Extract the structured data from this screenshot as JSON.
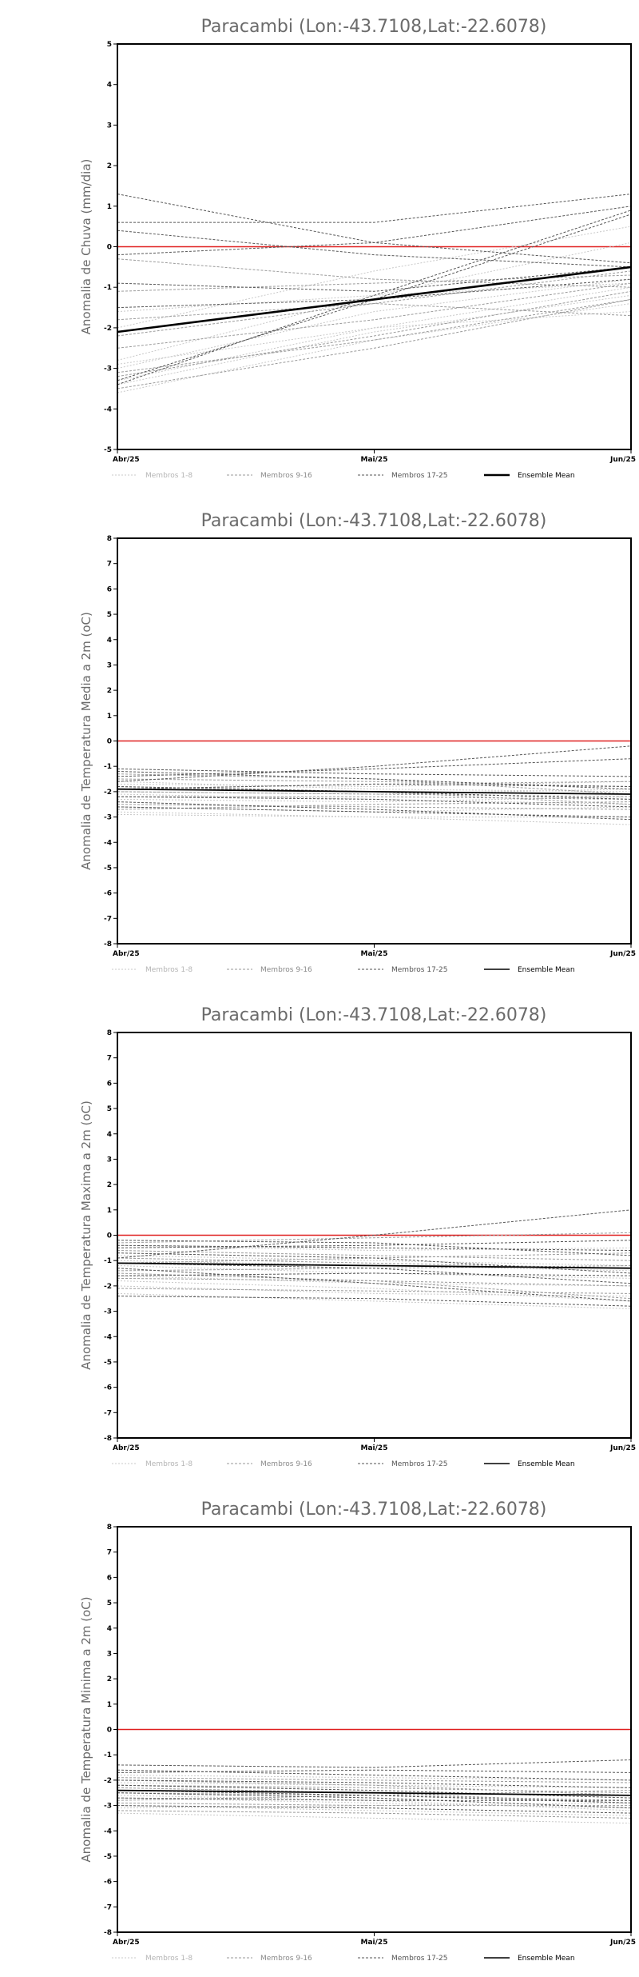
{
  "chart_data": [
    {
      "type": "line",
      "title": "Paracambi (Lon:-43.7108,Lat:-22.6078)",
      "ylabel": "Anomalia de Chuva (mm/dia)",
      "x": [
        "Abr/25",
        "Mai/25",
        "Jun/25"
      ],
      "ylim": [
        -5,
        5
      ],
      "yticks": [
        5,
        4,
        3,
        2,
        1,
        0,
        -1,
        -2,
        -3,
        -4,
        -5
      ],
      "reference_line": {
        "y": 0,
        "color": "#e02020"
      },
      "legend": [
        {
          "name": "Membros 1-8",
          "color": "#c8c8c8",
          "dash": "2,2"
        },
        {
          "name": "Membros 9-16",
          "color": "#9a9a9a",
          "dash": "3,2"
        },
        {
          "name": "Membros 17-25",
          "color": "#555555",
          "dash": "3,2"
        },
        {
          "name": "Ensemble Mean",
          "color": "#000000",
          "dash": ""
        }
      ],
      "series": [
        {
          "group": 0,
          "values": [
            -3.6,
            -2.3,
            -1.4
          ]
        },
        {
          "group": 0,
          "values": [
            -3.3,
            -2.0,
            -1.0
          ]
        },
        {
          "group": 0,
          "values": [
            -3.0,
            -1.6,
            -0.8
          ]
        },
        {
          "group": 0,
          "values": [
            -2.8,
            -1.2,
            0.1
          ]
        },
        {
          "group": 0,
          "values": [
            -2.0,
            -0.6,
            0.5
          ]
        },
        {
          "group": 0,
          "values": [
            -1.6,
            -1.2,
            -0.9
          ]
        },
        {
          "group": 0,
          "values": [
            -3.4,
            -2.1,
            -1.2
          ]
        },
        {
          "group": 0,
          "values": [
            -2.9,
            -2.0,
            -1.6
          ]
        },
        {
          "group": 1,
          "values": [
            -3.5,
            -2.5,
            -1.3
          ]
        },
        {
          "group": 1,
          "values": [
            -3.2,
            -2.2,
            -1.1
          ]
        },
        {
          "group": 1,
          "values": [
            -2.5,
            -1.8,
            -0.9
          ]
        },
        {
          "group": 1,
          "values": [
            -2.2,
            -1.4,
            -0.6
          ]
        },
        {
          "group": 1,
          "values": [
            -0.3,
            -0.8,
            -1.0
          ]
        },
        {
          "group": 1,
          "values": [
            -1.8,
            -1.4,
            -1.7
          ]
        },
        {
          "group": 1,
          "values": [
            -3.1,
            -2.3,
            -1.3
          ]
        },
        {
          "group": 1,
          "values": [
            -1.1,
            -0.9,
            -0.7
          ]
        },
        {
          "group": 2,
          "values": [
            1.3,
            0.1,
            -0.4
          ]
        },
        {
          "group": 2,
          "values": [
            -3.4,
            -1.2,
            0.9
          ]
        },
        {
          "group": 2,
          "values": [
            -3.3,
            -1.3,
            0.8
          ]
        },
        {
          "group": 2,
          "values": [
            0.6,
            0.6,
            1.3
          ]
        },
        {
          "group": 2,
          "values": [
            0.4,
            -0.2,
            -0.5
          ]
        },
        {
          "group": 2,
          "values": [
            -0.9,
            -1.1,
            -0.5
          ]
        },
        {
          "group": 2,
          "values": [
            -2.1,
            -1.3,
            -0.5
          ]
        },
        {
          "group": 2,
          "values": [
            -0.2,
            0.1,
            1.0
          ]
        },
        {
          "group": 2,
          "values": [
            -1.5,
            -1.3,
            -0.8
          ]
        },
        {
          "group": 3,
          "values": [
            -2.1,
            -1.3,
            -0.5
          ]
        }
      ]
    },
    {
      "type": "line",
      "title": "Paracambi (Lon:-43.7108,Lat:-22.6078)",
      "ylabel": "Anomalia de Temperatura Media a 2m (oC)",
      "x": [
        "Abr/25",
        "Mai/25",
        "Jun/25"
      ],
      "ylim": [
        -8,
        8
      ],
      "yticks": [
        8,
        7,
        6,
        5,
        4,
        3,
        2,
        1,
        0,
        -1,
        -2,
        -3,
        -4,
        -5,
        -6,
        -7,
        -8
      ],
      "reference_line": {
        "y": 0,
        "color": "#e02020"
      },
      "legend": [
        {
          "name": "Membros 1-8",
          "color": "#c8c8c8",
          "dash": "2,2"
        },
        {
          "name": "Membros 9-16",
          "color": "#9a9a9a",
          "dash": "3,2"
        },
        {
          "name": "Membros 17-25",
          "color": "#555555",
          "dash": "3,2"
        },
        {
          "name": "Ensemble Mean",
          "color": "#000000",
          "dash": ""
        }
      ],
      "series": [
        {
          "group": 0,
          "values": [
            -2.9,
            -3.0,
            -3.0
          ]
        },
        {
          "group": 0,
          "values": [
            -2.6,
            -2.8,
            -2.6
          ]
        },
        {
          "group": 0,
          "values": [
            -2.3,
            -2.4,
            -2.2
          ]
        },
        {
          "group": 0,
          "values": [
            -2.0,
            -2.1,
            -1.9
          ]
        },
        {
          "group": 0,
          "values": [
            -1.7,
            -1.8,
            -1.6
          ]
        },
        {
          "group": 0,
          "values": [
            -2.8,
            -3.0,
            -3.3
          ]
        },
        {
          "group": 0,
          "values": [
            -2.1,
            -2.3,
            -2.5
          ]
        },
        {
          "group": 0,
          "values": [
            -1.6,
            -1.9,
            -2.0
          ]
        },
        {
          "group": 1,
          "values": [
            -2.5,
            -2.6,
            -2.7
          ]
        },
        {
          "group": 1,
          "values": [
            -2.2,
            -2.2,
            -2.3
          ]
        },
        {
          "group": 1,
          "values": [
            -1.9,
            -1.7,
            -1.6
          ]
        },
        {
          "group": 1,
          "values": [
            -1.5,
            -1.6,
            -1.8
          ]
        },
        {
          "group": 1,
          "values": [
            -2.7,
            -2.5,
            -2.4
          ]
        },
        {
          "group": 1,
          "values": [
            -1.3,
            -1.5,
            -2.1
          ]
        },
        {
          "group": 1,
          "values": [
            -2.0,
            -2.1,
            -2.2
          ]
        },
        {
          "group": 1,
          "values": [
            -1.8,
            -2.0,
            -2.5
          ]
        },
        {
          "group": 2,
          "values": [
            -1.1,
            -1.3,
            -1.4
          ]
        },
        {
          "group": 2,
          "values": [
            -1.6,
            -1.0,
            -0.2
          ]
        },
        {
          "group": 2,
          "values": [
            -1.4,
            -1.1,
            -0.7
          ]
        },
        {
          "group": 2,
          "values": [
            -2.4,
            -2.7,
            -3.1
          ]
        },
        {
          "group": 2,
          "values": [
            -1.8,
            -2.0,
            -2.3
          ]
        },
        {
          "group": 2,
          "values": [
            -2.6,
            -2.8,
            -3.0
          ]
        },
        {
          "group": 2,
          "values": [
            -1.2,
            -1.5,
            -1.9
          ]
        },
        {
          "group": 2,
          "values": [
            -2.2,
            -2.3,
            -2.6
          ]
        },
        {
          "group": 2,
          "values": [
            -1.9,
            -1.7,
            -1.8
          ]
        },
        {
          "group": 3,
          "values": [
            -1.9,
            -2.0,
            -2.1
          ]
        }
      ]
    },
    {
      "type": "line",
      "title": "Paracambi (Lon:-43.7108,Lat:-22.6078)",
      "ylabel": "Anomalia de Temperatura Maxima a 2m (oC)",
      "x": [
        "Abr/25",
        "Mai/25",
        "Jun/25"
      ],
      "ylim": [
        -8,
        8
      ],
      "yticks": [
        8,
        7,
        6,
        5,
        4,
        3,
        2,
        1,
        0,
        -1,
        -2,
        -3,
        -4,
        -5,
        -6,
        -7,
        -8
      ],
      "reference_line": {
        "y": 0,
        "color": "#e02020"
      },
      "legend": [
        {
          "name": "Membros 1-8",
          "color": "#c8c8c8",
          "dash": "2,2"
        },
        {
          "name": "Membros 9-16",
          "color": "#9a9a9a",
          "dash": "3,2"
        },
        {
          "name": "Membros 17-25",
          "color": "#555555",
          "dash": "3,2"
        },
        {
          "name": "Ensemble Mean",
          "color": "#000000",
          "dash": ""
        }
      ],
      "series": [
        {
          "group": 0,
          "values": [
            -2.3,
            -2.6,
            -2.9
          ]
        },
        {
          "group": 0,
          "values": [
            -2.0,
            -2.3,
            -2.4
          ]
        },
        {
          "group": 0,
          "values": [
            -1.6,
            -1.9,
            -2.0
          ]
        },
        {
          "group": 0,
          "values": [
            -1.2,
            -1.5,
            -1.7
          ]
        },
        {
          "group": 0,
          "values": [
            -0.8,
            -1.0,
            -1.2
          ]
        },
        {
          "group": 0,
          "values": [
            -0.4,
            -0.6,
            -0.5
          ]
        },
        {
          "group": 0,
          "values": [
            -1.8,
            -2.1,
            -2.6
          ]
        },
        {
          "group": 0,
          "values": [
            -1.0,
            -1.2,
            -1.4
          ]
        },
        {
          "group": 1,
          "values": [
            -2.1,
            -2.2,
            -2.3
          ]
        },
        {
          "group": 1,
          "values": [
            -1.7,
            -1.8,
            -2.0
          ]
        },
        {
          "group": 1,
          "values": [
            -1.4,
            -1.3,
            -1.2
          ]
        },
        {
          "group": 1,
          "values": [
            -0.9,
            -1.1,
            -1.3
          ]
        },
        {
          "group": 1,
          "values": [
            -0.6,
            -0.8,
            -1.0
          ]
        },
        {
          "group": 1,
          "values": [
            -0.3,
            -0.1,
            0.1
          ]
        },
        {
          "group": 1,
          "values": [
            -1.5,
            -1.8,
            -2.5
          ]
        },
        {
          "group": 1,
          "values": [
            -1.1,
            -0.9,
            -0.7
          ]
        },
        {
          "group": 2,
          "values": [
            -0.9,
            0.0,
            1.0
          ]
        },
        {
          "group": 2,
          "values": [
            -0.5,
            -0.4,
            -0.2
          ]
        },
        {
          "group": 2,
          "values": [
            -0.2,
            -0.3,
            -0.8
          ]
        },
        {
          "group": 2,
          "values": [
            -2.4,
            -2.5,
            -2.8
          ]
        },
        {
          "group": 2,
          "values": [
            -1.3,
            -1.9,
            -2.6
          ]
        },
        {
          "group": 2,
          "values": [
            -0.7,
            -0.9,
            -1.5
          ]
        },
        {
          "group": 2,
          "values": [
            -1.6,
            -1.5,
            -1.6
          ]
        },
        {
          "group": 2,
          "values": [
            -1.1,
            -1.3,
            -1.9
          ]
        },
        {
          "group": 2,
          "values": [
            -0.4,
            -0.5,
            -0.6
          ]
        },
        {
          "group": 3,
          "values": [
            -1.1,
            -1.2,
            -1.3
          ]
        }
      ]
    },
    {
      "type": "line",
      "title": "Paracambi (Lon:-43.7108,Lat:-22.6078)",
      "ylabel": "Anomalia de Temperatura Minima a 2m (oC)",
      "x": [
        "Abr/25",
        "Mai/25",
        "Jun/25"
      ],
      "ylim": [
        -8,
        8
      ],
      "yticks": [
        8,
        7,
        6,
        5,
        4,
        3,
        2,
        1,
        0,
        -1,
        -2,
        -3,
        -4,
        -5,
        -6,
        -7,
        -8
      ],
      "reference_line": {
        "y": 0,
        "color": "#e02020"
      },
      "legend": [
        {
          "name": "Membros 1-8",
          "color": "#c8c8c8",
          "dash": "2,2"
        },
        {
          "name": "Membros 9-16",
          "color": "#9a9a9a",
          "dash": "3,2"
        },
        {
          "name": "Membros 17-25",
          "color": "#555555",
          "dash": "3,2"
        },
        {
          "name": "Ensemble Mean",
          "color": "#000000",
          "dash": ""
        }
      ],
      "series": [
        {
          "group": 0,
          "values": [
            -3.3,
            -3.5,
            -3.7
          ]
        },
        {
          "group": 0,
          "values": [
            -3.0,
            -3.2,
            -3.4
          ]
        },
        {
          "group": 0,
          "values": [
            -2.7,
            -2.9,
            -3.1
          ]
        },
        {
          "group": 0,
          "values": [
            -2.4,
            -2.5,
            -2.6
          ]
        },
        {
          "group": 0,
          "values": [
            -2.1,
            -2.2,
            -2.3
          ]
        },
        {
          "group": 0,
          "values": [
            -1.8,
            -1.9,
            -2.0
          ]
        },
        {
          "group": 0,
          "values": [
            -3.1,
            -3.0,
            -2.9
          ]
        },
        {
          "group": 0,
          "values": [
            -2.6,
            -2.8,
            -3.2
          ]
        },
        {
          "group": 1,
          "values": [
            -3.2,
            -3.3,
            -3.5
          ]
        },
        {
          "group": 1,
          "values": [
            -2.9,
            -3.0,
            -3.0
          ]
        },
        {
          "group": 1,
          "values": [
            -2.5,
            -2.6,
            -2.8
          ]
        },
        {
          "group": 1,
          "values": [
            -2.2,
            -2.3,
            -2.5
          ]
        },
        {
          "group": 1,
          "values": [
            -1.9,
            -2.0,
            -2.1
          ]
        },
        {
          "group": 1,
          "values": [
            -2.8,
            -2.6,
            -2.4
          ]
        },
        {
          "group": 1,
          "values": [
            -2.3,
            -2.5,
            -2.9
          ]
        },
        {
          "group": 1,
          "values": [
            -2.0,
            -2.2,
            -2.6
          ]
        },
        {
          "group": 2,
          "values": [
            -1.4,
            -1.5,
            -1.2
          ]
        },
        {
          "group": 2,
          "values": [
            -1.6,
            -1.8,
            -2.0
          ]
        },
        {
          "group": 2,
          "values": [
            -2.0,
            -2.1,
            -2.3
          ]
        },
        {
          "group": 2,
          "values": [
            -3.0,
            -3.1,
            -3.3
          ]
        },
        {
          "group": 2,
          "values": [
            -2.4,
            -2.6,
            -2.9
          ]
        },
        {
          "group": 2,
          "values": [
            -2.7,
            -2.8,
            -2.8
          ]
        },
        {
          "group": 2,
          "values": [
            -2.2,
            -2.4,
            -2.7
          ]
        },
        {
          "group": 2,
          "values": [
            -1.7,
            -1.6,
            -1.7
          ]
        },
        {
          "group": 2,
          "values": [
            -2.5,
            -2.7,
            -3.1
          ]
        },
        {
          "group": 3,
          "values": [
            -2.4,
            -2.5,
            -2.6
          ]
        }
      ]
    }
  ]
}
